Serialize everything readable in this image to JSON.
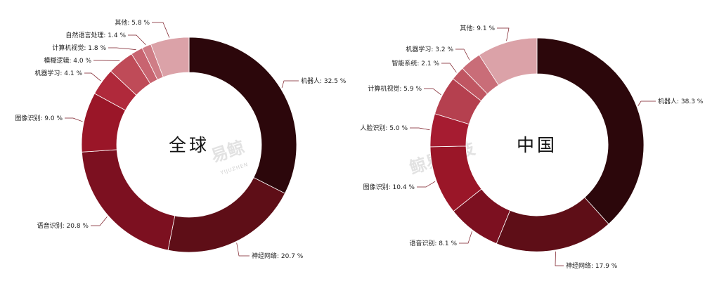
{
  "chart_data": [
    {
      "type": "pie",
      "style": "donut",
      "center_label": "全球",
      "slices": [
        {
          "label": "机器人",
          "value": 32.5,
          "display": "32.5 %",
          "color": "#2c070b"
        },
        {
          "label": "神经网络",
          "value": 20.7,
          "display": "20.7 %",
          "color": "#5e0e17"
        },
        {
          "label": "语音识别",
          "value": 20.8,
          "display": "20.8 %",
          "color": "#7c1020"
        },
        {
          "label": "图像识别",
          "value": 9.0,
          "display": "9.0 %",
          "color": "#9a1628"
        },
        {
          "label": "机器学习",
          "value": 4.1,
          "display": "4.1 %",
          "color": "#b0293b"
        },
        {
          "label": "模糊逻辑",
          "value": 4.0,
          "display": "4.0 %",
          "color": "#bf4b58"
        },
        {
          "label": "计算机视觉",
          "value": 1.8,
          "display": "1.8 %",
          "color": "#c86470"
        },
        {
          "label": "自然语言处理",
          "value": 1.4,
          "display": "1.4 %",
          "color": "#cf7d86"
        },
        {
          "label": "其他",
          "value": 5.8,
          "display": "5.8 %",
          "color": "#dba2a8"
        }
      ]
    },
    {
      "type": "pie",
      "style": "donut",
      "center_label": "中国",
      "slices": [
        {
          "label": "机器人",
          "value": 38.3,
          "display": "38.3 %",
          "color": "#2c070b"
        },
        {
          "label": "神经网络",
          "value": 17.9,
          "display": "17.9 %",
          "color": "#5e0e17"
        },
        {
          "label": "语音识别",
          "value": 8.1,
          "display": "8.1 %",
          "color": "#7c1020"
        },
        {
          "label": "图像识别",
          "value": 10.4,
          "display": "10.4 %",
          "color": "#9a1628"
        },
        {
          "label": "人脸识别",
          "value": 5.0,
          "display": "5.0 %",
          "color": "#a61c31"
        },
        {
          "label": "计算机视觉",
          "value": 5.9,
          "display": "5.9 %",
          "color": "#b5404f"
        },
        {
          "label": "智能系统",
          "value": 2.1,
          "display": "2.1 %",
          "color": "#c05662"
        },
        {
          "label": "机器学习",
          "value": 3.2,
          "display": "3.2 %",
          "color": "#c96d78"
        },
        {
          "label": "其他",
          "value": 9.1,
          "display": "9.1 %",
          "color": "#dba2a8"
        }
      ]
    }
  ],
  "watermarks": {
    "left_main": "易鲸",
    "left_sub": "YIJUZHEN",
    "right_main": "鲸易科技"
  }
}
